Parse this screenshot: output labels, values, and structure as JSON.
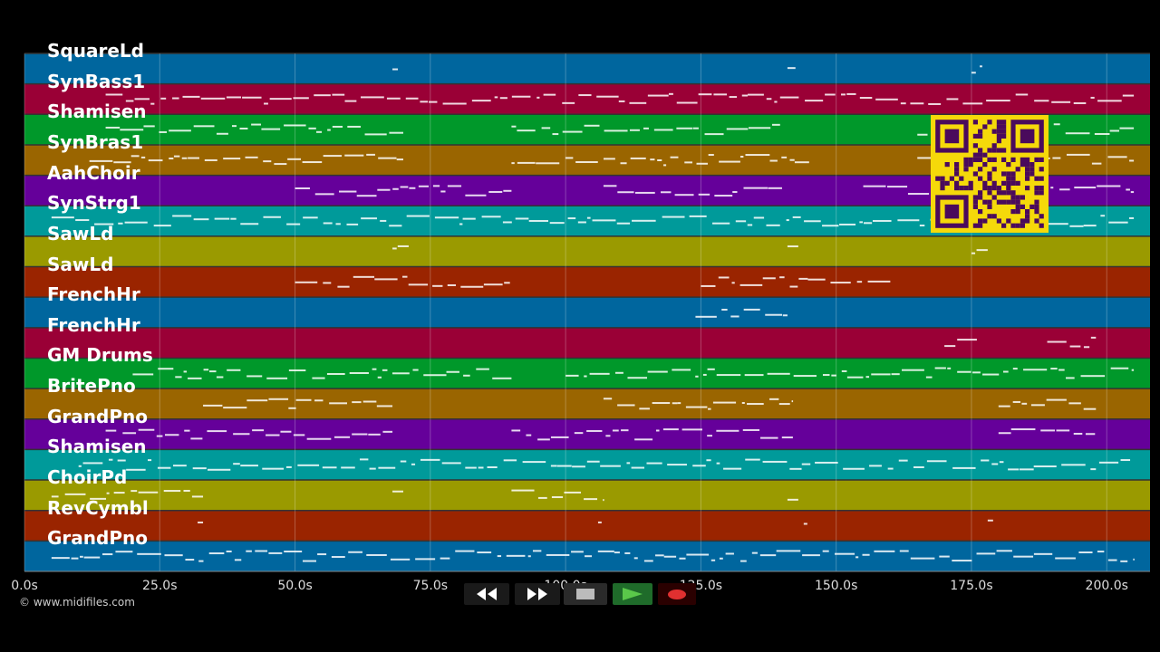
{
  "tracks": [
    {
      "name": "SquareLd",
      "color": "#00669e"
    },
    {
      "name": "SynBass1",
      "color": "#9a0036"
    },
    {
      "name": "Shamisen",
      "color": "#00982a"
    },
    {
      "name": "SynBras1",
      "color": "#9a6500"
    },
    {
      "name": "AahChoir",
      "color": "#65009a"
    },
    {
      "name": "SynStrg1",
      "color": "#009a9a"
    },
    {
      "name": "SawLd",
      "color": "#9a9a00"
    },
    {
      "name": "SawLd",
      "color": "#9a2400"
    },
    {
      "name": "FrenchHr",
      "color": "#00669e"
    },
    {
      "name": "FrenchHr",
      "color": "#9a0036"
    },
    {
      "name": "GM Drums",
      "color": "#00982a"
    },
    {
      "name": "BritePno",
      "color": "#9a6500"
    },
    {
      "name": "GrandPno",
      "color": "#65009a"
    },
    {
      "name": "Shamisen",
      "color": "#009a9a"
    },
    {
      "name": "ChoirPd",
      "color": "#9a9a00"
    },
    {
      "name": "RevCymbl",
      "color": "#9a2400"
    },
    {
      "name": "GrandPno",
      "color": "#00669e"
    }
  ],
  "timeline": {
    "ticks": [
      "0.0s",
      "25.0s",
      "50.0s",
      "75.0s",
      "100.0s",
      "125.0s",
      "150.0s",
      "175.0s",
      "200.0s"
    ],
    "tick_values": [
      0,
      25,
      50,
      75,
      100,
      125,
      150,
      175,
      200
    ],
    "range": [
      0,
      208
    ]
  },
  "copyright": "© www.midifiles.com",
  "transport": {
    "rewind_icon": "rewind-icon",
    "forward_icon": "fast-forward-icon",
    "stop_icon": "stop-icon",
    "play_icon": "play-icon",
    "record_icon": "record-icon"
  },
  "qr_icon": "qr-code-icon"
}
